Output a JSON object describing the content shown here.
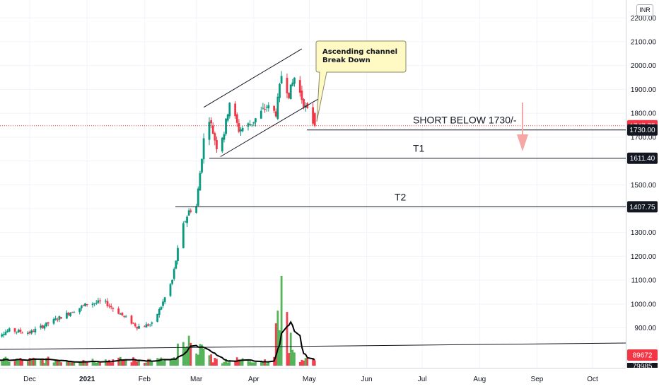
{
  "currency": "INR",
  "annotation": {
    "lines": [
      "Ascending channel",
      "Break Down"
    ]
  },
  "levels": [
    {
      "label": "SHORT BELOW  1730/-",
      "value": 1730.0,
      "badge": "1730.00"
    },
    {
      "label": "T1",
      "value": 1611.4,
      "badge": "1611.40"
    },
    {
      "label": "T2",
      "value": 1407.75,
      "badge": "1407.75"
    }
  ],
  "last_price": {
    "value": 1747.75,
    "badge": "1747.75",
    "color": "#f23645"
  },
  "volume_badge": {
    "value": 89672,
    "badge": "89672",
    "color": "#f23645"
  },
  "volume_badge_partial": "79985",
  "colors": {
    "up": "#089981",
    "down": "#f23645",
    "vol_up": "#4caf50",
    "vol_down": "#f23645",
    "avg": "#000000",
    "arrow": "#f7a6a6"
  },
  "chart_data": {
    "type": "candlestick",
    "yaxis": {
      "ticks": [
        900,
        1000,
        1100,
        1200,
        1300,
        1400,
        1500,
        1600,
        1700,
        1800,
        1900,
        2000,
        2100,
        2200
      ],
      "tick_labels": [
        "900.00",
        "1000.00",
        "1100.00",
        "1200.00",
        "1300.00",
        "1400.00",
        "1500.00",
        "1600.00",
        "1700.00",
        "1800.00",
        "1900.00",
        "2000.00",
        "2100.00",
        "2200.00"
      ],
      "ylim": [
        770,
        2250
      ]
    },
    "xaxis": {
      "ticks": [
        {
          "label": "Dec",
          "date": "2020-12-01"
        },
        {
          "label": "2021",
          "date": "2021-01-01",
          "bold": true
        },
        {
          "label": "Feb",
          "date": "2021-02-01"
        },
        {
          "label": "Mar",
          "date": "2021-03-01"
        },
        {
          "label": "Apr",
          "date": "2021-04-01"
        },
        {
          "label": "May",
          "date": "2021-05-01"
        },
        {
          "label": "Jun",
          "date": "2021-06-01"
        },
        {
          "label": "Jul",
          "date": "2021-07-01"
        },
        {
          "label": "Aug",
          "date": "2021-08-01"
        },
        {
          "label": "Sep",
          "date": "2021-09-01"
        },
        {
          "label": "Oct",
          "date": "2021-10-01"
        }
      ]
    },
    "keypoints": [
      {
        "date": "2020-11-10",
        "close": 860
      },
      {
        "date": "2020-11-20",
        "close": 890
      },
      {
        "date": "2020-12-01",
        "close": 880
      },
      {
        "date": "2020-12-15",
        "close": 935
      },
      {
        "date": "2021-01-01",
        "close": 1000
      },
      {
        "date": "2021-01-10",
        "close": 1010
      },
      {
        "date": "2021-01-18",
        "close": 965
      },
      {
        "date": "2021-01-28",
        "close": 905
      },
      {
        "date": "2021-02-05",
        "close": 915
      },
      {
        "date": "2021-02-10",
        "close": 990
      },
      {
        "date": "2021-02-16",
        "close": 1100
      },
      {
        "date": "2021-02-21",
        "close": 1310
      },
      {
        "date": "2021-02-25",
        "close": 1390
      },
      {
        "date": "2021-03-01",
        "close": 1410
      },
      {
        "date": "2021-03-05",
        "close": 1690
      },
      {
        "date": "2021-03-08",
        "close": 1780
      },
      {
        "date": "2021-03-12",
        "close": 1660
      },
      {
        "date": "2021-03-16",
        "close": 1720
      },
      {
        "date": "2021-03-19",
        "close": 1850
      },
      {
        "date": "2021-03-24",
        "close": 1730
      },
      {
        "date": "2021-03-31",
        "close": 1760
      },
      {
        "date": "2021-04-08",
        "close": 1830
      },
      {
        "date": "2021-04-13",
        "close": 1800
      },
      {
        "date": "2021-04-16",
        "close": 1960
      },
      {
        "date": "2021-04-20",
        "close": 1880
      },
      {
        "date": "2021-04-23",
        "close": 1950
      },
      {
        "date": "2021-04-28",
        "close": 1840
      },
      {
        "date": "2021-05-04",
        "close": 1747.75
      }
    ],
    "channel": {
      "upper": [
        [
          "2021-03-05",
          1825
        ],
        [
          "2021-04-27",
          2070
        ]
      ],
      "lower": [
        [
          "2021-03-14",
          1618
        ],
        [
          "2021-05-07",
          1865
        ]
      ]
    },
    "volume": {
      "spikes": [
        {
          "date": "2021-02-25",
          "value": 100000,
          "dir": "up"
        },
        {
          "date": "2021-04-16",
          "value": 300000,
          "dir": "down"
        },
        {
          "date": "2021-04-21",
          "value": 110000,
          "dir": "down"
        }
      ],
      "last": 89672
    }
  }
}
